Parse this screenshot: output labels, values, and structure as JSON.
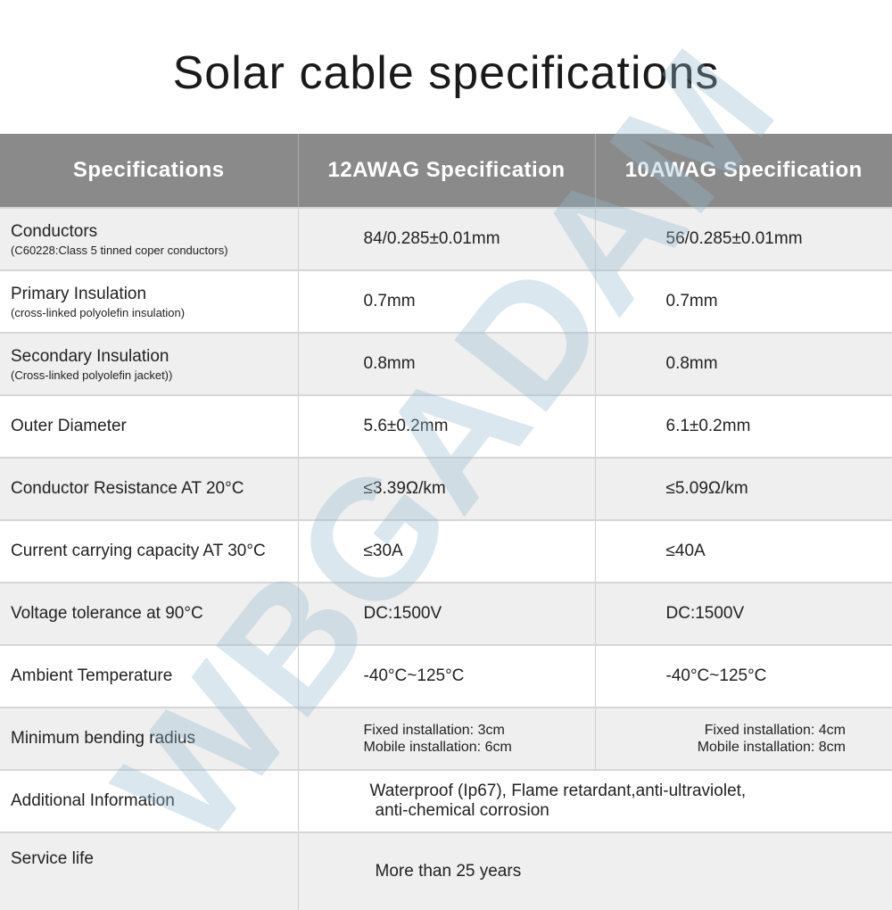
{
  "title": "Solar cable specifications",
  "watermark": "WBGADAM",
  "colors": {
    "header_bg": "#8a8a8a",
    "row_alt": "#efefef",
    "watermark": "#96b9d2"
  },
  "headers": [
    "Specifications",
    "12AWAG Specification",
    "10AWAG Specification"
  ],
  "rows": [
    {
      "name": "Conductors",
      "sub": "(C60228:Class 5 tinned coper conductors)",
      "a": "84/0.285±0.01mm",
      "b": "56/0.285±0.01mm"
    },
    {
      "name": "Primary Insulation",
      "sub": "(cross-linked polyolefin insulation)",
      "a": "0.7mm",
      "b": "0.7mm"
    },
    {
      "name": "Secondary Insulation",
      "sub": "(Cross-linked polyolefin jacket))",
      "a": "0.8mm",
      "b": "0.8mm"
    },
    {
      "name": "Outer Diameter",
      "a": "5.6±0.2mm",
      "b": "6.1±0.2mm"
    },
    {
      "name": "Conductor Resistance AT 20°C",
      "a": "≤3.39Ω/km",
      "b": "≤5.09Ω/km"
    },
    {
      "name": "Current carrying capacity AT 30°C",
      "a": "≤30A",
      "b": "≤40A"
    },
    {
      "name": "Voltage tolerance at 90°C",
      "a": "DC:1500V",
      "b": "DC:1500V"
    },
    {
      "name": "Ambient Temperature",
      "a": "-40°C~125°C",
      "b": "-40°C~125°C"
    },
    {
      "name": "Minimum bending radius",
      "a1": "Fixed installation: 3cm",
      "a2": "Mobile installation: 6cm",
      "b1": "Fixed installation: 4cm",
      "b2": "Mobile installation: 8cm"
    },
    {
      "name": "Additional Information",
      "v1": "Waterproof (Ip67), Flame retardant,anti-ultraviolet,",
      "v2": "anti-chemical corrosion"
    },
    {
      "name": "Service life",
      "v1": "More than 25 years"
    }
  ]
}
